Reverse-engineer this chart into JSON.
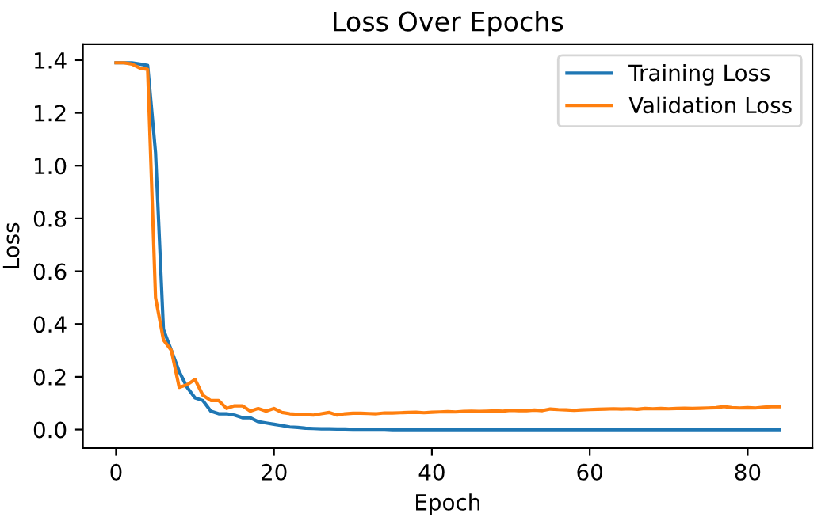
{
  "chart_data": {
    "type": "line",
    "title": "Loss Over Epochs",
    "xlabel": "Epoch",
    "ylabel": "Loss",
    "x": [
      0,
      1,
      2,
      3,
      4,
      5,
      6,
      7,
      8,
      9,
      10,
      11,
      12,
      13,
      14,
      15,
      16,
      17,
      18,
      19,
      20,
      21,
      22,
      23,
      24,
      25,
      26,
      27,
      28,
      29,
      30,
      31,
      32,
      33,
      34,
      35,
      36,
      37,
      38,
      39,
      40,
      41,
      42,
      43,
      44,
      45,
      46,
      47,
      48,
      49,
      50,
      51,
      52,
      53,
      54,
      55,
      56,
      57,
      58,
      59,
      60,
      61,
      62,
      63,
      64,
      65,
      66,
      67,
      68,
      69,
      70,
      71,
      72,
      73,
      74,
      75,
      76,
      77,
      78,
      79,
      80,
      81,
      82,
      83,
      84
    ],
    "series": [
      {
        "name": "Training Loss",
        "color": "#1f77b4",
        "values": [
          1.39,
          1.39,
          1.39,
          1.385,
          1.38,
          1.05,
          0.38,
          0.3,
          0.22,
          0.16,
          0.12,
          0.11,
          0.07,
          0.06,
          0.06,
          0.055,
          0.045,
          0.045,
          0.03,
          0.025,
          0.02,
          0.015,
          0.01,
          0.008,
          0.005,
          0.004,
          0.003,
          0.003,
          0.002,
          0.002,
          0.001,
          0.001,
          0.001,
          0.001,
          0.001,
          0,
          0,
          0,
          0,
          0,
          0,
          0,
          0,
          0,
          0,
          0,
          0,
          0,
          0,
          0,
          0,
          0,
          0,
          0,
          0,
          0,
          0,
          0,
          0,
          0,
          0,
          0,
          0,
          0,
          0,
          0,
          0,
          0,
          0,
          0,
          0,
          0,
          0,
          0,
          0,
          0,
          0,
          0,
          0,
          0,
          0,
          0,
          0,
          0,
          0
        ]
      },
      {
        "name": "Validation Loss",
        "color": "#ff7f0e",
        "values": [
          1.39,
          1.39,
          1.385,
          1.37,
          1.365,
          0.5,
          0.34,
          0.3,
          0.16,
          0.17,
          0.19,
          0.13,
          0.11,
          0.11,
          0.08,
          0.09,
          0.09,
          0.07,
          0.08,
          0.07,
          0.08,
          0.065,
          0.06,
          0.058,
          0.057,
          0.055,
          0.06,
          0.065,
          0.055,
          0.06,
          0.062,
          0.062,
          0.061,
          0.06,
          0.063,
          0.063,
          0.064,
          0.065,
          0.066,
          0.064,
          0.066,
          0.067,
          0.068,
          0.067,
          0.069,
          0.07,
          0.069,
          0.07,
          0.071,
          0.07,
          0.073,
          0.072,
          0.072,
          0.074,
          0.072,
          0.078,
          0.076,
          0.075,
          0.073,
          0.075,
          0.076,
          0.077,
          0.078,
          0.079,
          0.078,
          0.079,
          0.077,
          0.08,
          0.079,
          0.08,
          0.079,
          0.08,
          0.081,
          0.08,
          0.081,
          0.082,
          0.083,
          0.087,
          0.083,
          0.082,
          0.083,
          0.082,
          0.085,
          0.087,
          0.087
        ]
      }
    ],
    "xlim": [
      -4.2,
      88.2
    ],
    "ylim": [
      -0.07,
      1.46
    ],
    "xticks": [
      0,
      20,
      40,
      60,
      80
    ],
    "yticks": [
      {
        "value": 0,
        "label": "0.0"
      },
      0.2,
      0.4,
      0.6,
      0.8,
      {
        "value": 1,
        "label": "1.0"
      },
      1.2,
      1.4
    ],
    "legend": "top right",
    "grid": false
  }
}
